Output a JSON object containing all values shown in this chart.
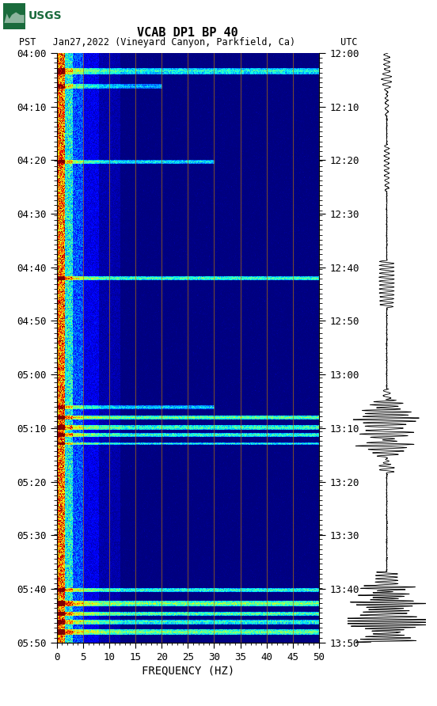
{
  "title_line1": "VCAB DP1 BP 40",
  "title_line2": "PST   Jan27,2022 (Vineyard Canyon, Parkfield, Ca)        UTC",
  "xlabel": "FREQUENCY (HZ)",
  "left_yticks_labels": [
    "04:00",
    "04:10",
    "04:20",
    "04:30",
    "04:40",
    "04:50",
    "05:00",
    "05:10",
    "05:20",
    "05:30",
    "05:40",
    "05:50"
  ],
  "right_yticks_labels": [
    "12:00",
    "12:10",
    "12:20",
    "12:30",
    "12:40",
    "12:50",
    "13:00",
    "13:10",
    "13:20",
    "13:30",
    "13:40",
    "13:50"
  ],
  "xtick_positions": [
    0,
    5,
    10,
    15,
    20,
    25,
    30,
    35,
    40,
    45,
    50
  ],
  "xtick_labels": [
    "0",
    "5",
    "10",
    "15",
    "20",
    "25",
    "30",
    "35",
    "40",
    "45",
    "50"
  ],
  "freq_gridlines": [
    5,
    10,
    15,
    20,
    25,
    30,
    35,
    40,
    45
  ],
  "xmin": 0,
  "xmax": 50,
  "n_time": 700,
  "n_freq": 500,
  "usgs_green": "#1a6b3c",
  "grid_color": "#cc8800",
  "waveform_color": "#000000",
  "events": [
    {
      "t": 0.03,
      "fmax": 50,
      "thick": 3,
      "amp": 1.8,
      "color_peak": 2.5
    },
    {
      "t": 0.057,
      "fmax": 20,
      "thick": 2,
      "amp": 1.4,
      "color_peak": 2.0
    },
    {
      "t": 0.185,
      "fmax": 30,
      "thick": 2,
      "amp": 1.6,
      "color_peak": 2.2
    },
    {
      "t": 0.382,
      "fmax": 50,
      "thick": 2,
      "amp": 2.0,
      "color_peak": 2.8
    },
    {
      "t": 0.6,
      "fmax": 30,
      "thick": 2,
      "amp": 1.5,
      "color_peak": 2.0
    },
    {
      "t": 0.618,
      "fmax": 50,
      "thick": 2,
      "amp": 2.2,
      "color_peak": 3.0
    },
    {
      "t": 0.635,
      "fmax": 50,
      "thick": 2,
      "amp": 2.0,
      "color_peak": 2.8
    },
    {
      "t": 0.648,
      "fmax": 50,
      "thick": 2,
      "amp": 1.9,
      "color_peak": 2.7
    },
    {
      "t": 0.662,
      "fmax": 50,
      "thick": 1,
      "amp": 1.7,
      "color_peak": 2.4
    },
    {
      "t": 0.91,
      "fmax": 50,
      "thick": 2,
      "amp": 1.9,
      "color_peak": 2.6
    },
    {
      "t": 0.933,
      "fmax": 50,
      "thick": 3,
      "amp": 2.3,
      "color_peak": 3.2
    },
    {
      "t": 0.951,
      "fmax": 50,
      "thick": 2,
      "amp": 2.1,
      "color_peak": 3.0
    },
    {
      "t": 0.965,
      "fmax": 50,
      "thick": 2,
      "amp": 1.9,
      "color_peak": 2.7
    },
    {
      "t": 0.982,
      "fmax": 50,
      "thick": 3,
      "amp": 2.2,
      "color_peak": 3.0
    }
  ],
  "wave_events": [
    {
      "t": 0.03,
      "amp": 0.12,
      "freq": 12,
      "decay": 150
    },
    {
      "t": 0.057,
      "amp": 0.08,
      "freq": 10,
      "decay": 200
    },
    {
      "t": 0.185,
      "amp": 0.1,
      "freq": 12,
      "decay": 180
    },
    {
      "t": 0.382,
      "amp": 0.3,
      "freq": 15,
      "decay": 80
    },
    {
      "t": 0.6,
      "amp": 0.15,
      "freq": 12,
      "decay": 150
    },
    {
      "t": 0.618,
      "amp": 0.55,
      "freq": 20,
      "decay": 70
    },
    {
      "t": 0.635,
      "amp": 0.45,
      "freq": 18,
      "decay": 75
    },
    {
      "t": 0.648,
      "amp": 0.4,
      "freq": 16,
      "decay": 80
    },
    {
      "t": 0.662,
      "amp": 0.35,
      "freq": 15,
      "decay": 90
    },
    {
      "t": 0.91,
      "amp": 0.45,
      "freq": 18,
      "decay": 70
    },
    {
      "t": 0.933,
      "amp": 0.7,
      "freq": 25,
      "decay": 55
    },
    {
      "t": 0.951,
      "amp": 0.6,
      "freq": 22,
      "decay": 60
    },
    {
      "t": 0.965,
      "amp": 0.5,
      "freq": 20,
      "decay": 70
    },
    {
      "t": 0.982,
      "amp": 0.55,
      "freq": 22,
      "decay": 65
    }
  ]
}
